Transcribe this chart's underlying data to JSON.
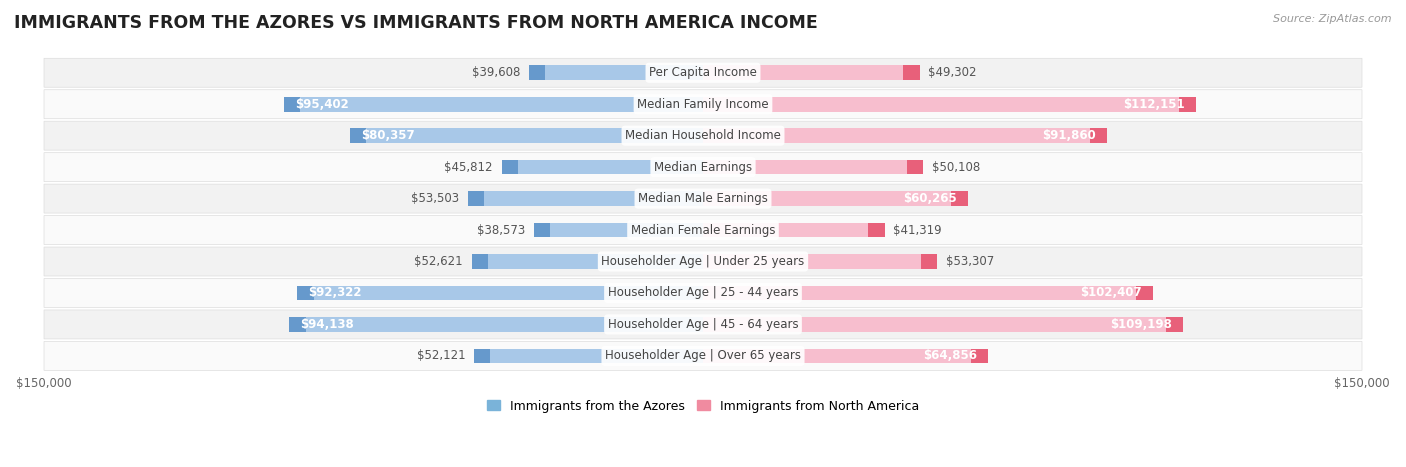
{
  "title": "IMMIGRANTS FROM THE AZORES VS IMMIGRANTS FROM NORTH AMERICA INCOME",
  "source": "Source: ZipAtlas.com",
  "categories": [
    "Per Capita Income",
    "Median Family Income",
    "Median Household Income",
    "Median Earnings",
    "Median Male Earnings",
    "Median Female Earnings",
    "Householder Age | Under 25 years",
    "Householder Age | 25 - 44 years",
    "Householder Age | 45 - 64 years",
    "Householder Age | Over 65 years"
  ],
  "azores_values": [
    39608,
    95402,
    80357,
    45812,
    53503,
    38573,
    52621,
    92322,
    94138,
    52121
  ],
  "north_america_values": [
    49302,
    112151,
    91860,
    50108,
    60265,
    41319,
    53307,
    102407,
    109198,
    64856
  ],
  "azores_labels": [
    "$39,608",
    "$95,402",
    "$80,357",
    "$45,812",
    "$53,503",
    "$38,573",
    "$52,621",
    "$92,322",
    "$94,138",
    "$52,121"
  ],
  "north_america_labels": [
    "$49,302",
    "$112,151",
    "$91,860",
    "$50,108",
    "$60,265",
    "$41,319",
    "$53,307",
    "$102,407",
    "$109,198",
    "$64,856"
  ],
  "azores_color_light": "#a8c8e8",
  "azores_color_dark": "#6699cc",
  "north_america_color_light": "#f7bece",
  "north_america_color_dark": "#e8607a",
  "bar_height": 0.62,
  "xlim": 150000,
  "row_bg_odd": "#f2f2f2",
  "row_bg_even": "#fafafa",
  "title_fontsize": 12.5,
  "label_fontsize": 8.5,
  "category_fontsize": 8.5,
  "legend_fontsize": 9,
  "source_fontsize": 8,
  "inside_label_threshold": 60000,
  "legend_azores_color": "#7ab3d9",
  "legend_na_color": "#f08ba0"
}
